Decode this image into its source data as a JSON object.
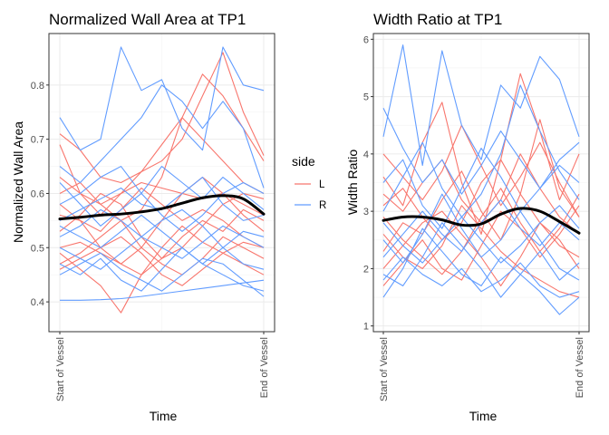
{
  "legend": {
    "title": "side",
    "items": [
      {
        "label": "L",
        "color": "#F8766D"
      },
      {
        "label": "R",
        "color": "#619CFF"
      }
    ]
  },
  "chart_data": [
    {
      "type": "line",
      "title": "Normalized Wall Area at TP1",
      "xlabel": "Time",
      "ylabel": "Normalized Wall Area",
      "x_ticks": [
        "Start of Vessel",
        "End of Vessel"
      ],
      "y_ticks": [
        0.4,
        0.5,
        0.6,
        0.7,
        0.8
      ],
      "ylim": [
        0.345,
        0.895
      ],
      "grid": true,
      "legend": "right",
      "trend": {
        "name": "",
        "color": "#000000",
        "values": [
          0.553,
          0.556,
          0.56,
          0.562,
          0.566,
          0.572,
          0.582,
          0.592,
          0.596,
          0.59,
          0.562
        ]
      },
      "series": [
        {
          "side": "L",
          "values": [
            0.71,
            0.68,
            0.63,
            0.62,
            0.64,
            0.66,
            0.7,
            0.78,
            0.86,
            0.75,
            0.67
          ]
        },
        {
          "side": "L",
          "values": [
            0.63,
            0.6,
            0.58,
            0.6,
            0.62,
            0.61,
            0.6,
            0.59,
            0.6,
            0.58,
            0.56
          ]
        },
        {
          "side": "L",
          "values": [
            0.56,
            0.55,
            0.5,
            0.47,
            0.5,
            0.55,
            0.6,
            0.63,
            0.6,
            0.56,
            0.53
          ]
        },
        {
          "side": "L",
          "values": [
            0.49,
            0.46,
            0.43,
            0.38,
            0.45,
            0.5,
            0.54,
            0.51,
            0.49,
            0.47,
            0.45
          ]
        },
        {
          "side": "L",
          "values": [
            0.53,
            0.56,
            0.6,
            0.58,
            0.52,
            0.48,
            0.5,
            0.54,
            0.58,
            0.6,
            0.59
          ]
        },
        {
          "side": "L",
          "values": [
            0.6,
            0.62,
            0.58,
            0.55,
            0.57,
            0.63,
            0.74,
            0.82,
            0.78,
            0.72,
            0.66
          ]
        },
        {
          "side": "L",
          "values": [
            0.47,
            0.49,
            0.52,
            0.55,
            0.5,
            0.47,
            0.45,
            0.48,
            0.52,
            0.5,
            0.48
          ]
        },
        {
          "side": "L",
          "values": [
            0.58,
            0.55,
            0.53,
            0.57,
            0.61,
            0.58,
            0.55,
            0.57,
            0.55,
            0.52,
            0.5
          ]
        },
        {
          "side": "L",
          "values": [
            0.5,
            0.51,
            0.49,
            0.47,
            0.45,
            0.48,
            0.52,
            0.55,
            0.53,
            0.57,
            0.55
          ]
        },
        {
          "side": "L",
          "values": [
            0.69,
            0.6,
            0.56,
            0.6,
            0.64,
            0.69,
            0.74,
            0.7,
            0.66,
            0.62,
            0.6
          ]
        },
        {
          "side": "L",
          "values": [
            0.46,
            0.48,
            0.5,
            0.52,
            0.49,
            0.45,
            0.43,
            0.46,
            0.49,
            0.51,
            0.5
          ]
        },
        {
          "side": "R",
          "values": [
            0.74,
            0.68,
            0.7,
            0.87,
            0.79,
            0.81,
            0.72,
            0.68,
            0.87,
            0.8,
            0.79
          ]
        },
        {
          "side": "R",
          "values": [
            0.65,
            0.62,
            0.66,
            0.7,
            0.74,
            0.8,
            0.77,
            0.72,
            0.77,
            0.72,
            0.61
          ]
        },
        {
          "side": "R",
          "values": [
            0.403,
            0.403,
            0.404,
            0.406,
            0.41,
            0.415,
            0.42,
            0.425,
            0.43,
            0.435,
            0.44
          ]
        },
        {
          "side": "R",
          "values": [
            0.55,
            0.57,
            0.59,
            0.61,
            0.58,
            0.57,
            0.6,
            0.63,
            0.58,
            0.55,
            0.56
          ]
        },
        {
          "side": "R",
          "values": [
            0.47,
            0.45,
            0.48,
            0.44,
            0.42,
            0.46,
            0.5,
            0.47,
            0.45,
            0.43,
            0.42
          ]
        },
        {
          "side": "R",
          "values": [
            0.52,
            0.54,
            0.57,
            0.55,
            0.52,
            0.5,
            0.48,
            0.51,
            0.54,
            0.52,
            0.5
          ]
        },
        {
          "side": "R",
          "values": [
            0.58,
            0.6,
            0.63,
            0.65,
            0.6,
            0.56,
            0.53,
            0.56,
            0.6,
            0.62,
            0.6
          ]
        },
        {
          "side": "R",
          "values": [
            0.5,
            0.48,
            0.46,
            0.49,
            0.52,
            0.55,
            0.57,
            0.54,
            0.5,
            0.47,
            0.46
          ]
        },
        {
          "side": "R",
          "values": [
            0.62,
            0.58,
            0.54,
            0.57,
            0.6,
            0.65,
            0.62,
            0.59,
            0.63,
            0.6,
            0.57
          ]
        },
        {
          "side": "R",
          "values": [
            0.45,
            0.47,
            0.49,
            0.46,
            0.44,
            0.42,
            0.45,
            0.48,
            0.47,
            0.44,
            0.41
          ]
        },
        {
          "side": "R",
          "values": [
            0.54,
            0.52,
            0.5,
            0.53,
            0.56,
            0.53,
            0.5,
            0.47,
            0.5,
            0.53,
            0.52
          ]
        }
      ]
    },
    {
      "type": "line",
      "title": "Width Ratio at TP1",
      "xlabel": "Time",
      "ylabel": "Width Ratio",
      "x_ticks": [
        "Start of Vessel",
        "End of Vessel"
      ],
      "y_ticks": [
        1,
        2,
        3,
        4,
        5,
        6
      ],
      "ylim": [
        0.9,
        6.1
      ],
      "grid": true,
      "trend": {
        "name": "",
        "color": "#000000",
        "values": [
          2.84,
          2.9,
          2.9,
          2.85,
          2.76,
          2.78,
          2.95,
          3.05,
          3.0,
          2.82,
          2.62
        ]
      },
      "series": [
        {
          "side": "L",
          "values": [
            3.6,
            3.1,
            4.2,
            4.9,
            3.5,
            2.6,
            3.9,
            5.4,
            4.4,
            3.2,
            4.0
          ]
        },
        {
          "side": "L",
          "values": [
            2.3,
            2.8,
            2.6,
            3.2,
            3.7,
            3.0,
            2.5,
            3.3,
            4.6,
            3.4,
            2.9
          ]
        },
        {
          "side": "L",
          "values": [
            1.7,
            2.1,
            2.5,
            2.0,
            1.8,
            2.4,
            3.0,
            2.7,
            2.2,
            2.6,
            3.1
          ]
        },
        {
          "side": "L",
          "values": [
            3.1,
            3.4,
            2.9,
            2.5,
            2.8,
            3.5,
            3.9,
            3.3,
            2.8,
            2.4,
            2.2
          ]
        },
        {
          "side": "L",
          "values": [
            2.6,
            2.2,
            2.0,
            2.4,
            3.1,
            2.7,
            2.3,
            2.0,
            1.8,
            1.6,
            1.5
          ]
        },
        {
          "side": "L",
          "values": [
            4.0,
            3.6,
            3.2,
            3.7,
            4.5,
            3.8,
            3.1,
            3.6,
            4.2,
            3.5,
            2.9
          ]
        },
        {
          "side": "L",
          "values": [
            2.9,
            2.5,
            2.2,
            1.9,
            2.3,
            2.9,
            3.4,
            2.8,
            2.3,
            2.7,
            3.3
          ]
        },
        {
          "side": "L",
          "values": [
            2.0,
            2.4,
            2.8,
            3.0,
            2.6,
            2.2,
            1.7,
            2.2,
            2.8,
            2.5,
            2.0
          ]
        },
        {
          "side": "L",
          "values": [
            3.3,
            3.0,
            3.5,
            3.9,
            3.2,
            2.8,
            3.2,
            4.0,
            3.4,
            2.9,
            2.6
          ]
        },
        {
          "side": "R",
          "values": [
            4.3,
            5.9,
            3.8,
            5.8,
            4.5,
            3.9,
            5.2,
            4.8,
            5.7,
            5.3,
            4.3
          ]
        },
        {
          "side": "R",
          "values": [
            1.8,
            2.2,
            1.9,
            1.7,
            2.0,
            1.6,
            1.8,
            2.1,
            1.7,
            1.5,
            1.6
          ]
        },
        {
          "side": "R",
          "values": [
            3.0,
            3.6,
            4.2,
            3.4,
            2.9,
            3.3,
            4.0,
            5.2,
            4.4,
            3.7,
            3.2
          ]
        },
        {
          "side": "R",
          "values": [
            2.5,
            2.1,
            2.6,
            3.3,
            2.7,
            2.2,
            2.5,
            3.0,
            2.5,
            2.0,
            1.8
          ]
        },
        {
          "side": "R",
          "values": [
            1.5,
            2.0,
            2.7,
            2.3,
            1.9,
            1.7,
            2.2,
            1.9,
            1.6,
            1.2,
            1.5
          ]
        },
        {
          "side": "R",
          "values": [
            3.5,
            3.9,
            3.1,
            2.7,
            3.4,
            4.1,
            3.6,
            3.0,
            3.4,
            3.8,
            3.5
          ]
        },
        {
          "side": "R",
          "values": [
            2.2,
            2.6,
            3.0,
            2.6,
            2.3,
            2.8,
            3.2,
            2.7,
            2.4,
            2.8,
            2.5
          ]
        },
        {
          "side": "R",
          "values": [
            2.8,
            2.4,
            2.1,
            2.5,
            2.9,
            2.5,
            2.1,
            2.4,
            2.8,
            3.1,
            2.7
          ]
        },
        {
          "side": "R",
          "values": [
            1.9,
            1.7,
            2.2,
            2.8,
            2.4,
            2.0,
            1.5,
            1.9,
            2.3,
            1.8,
            2.1
          ]
        },
        {
          "side": "R",
          "values": [
            4.8,
            4.1,
            3.5,
            3.9,
            3.3,
            3.8,
            4.4,
            3.9,
            3.4,
            3.9,
            4.2
          ]
        }
      ]
    }
  ]
}
